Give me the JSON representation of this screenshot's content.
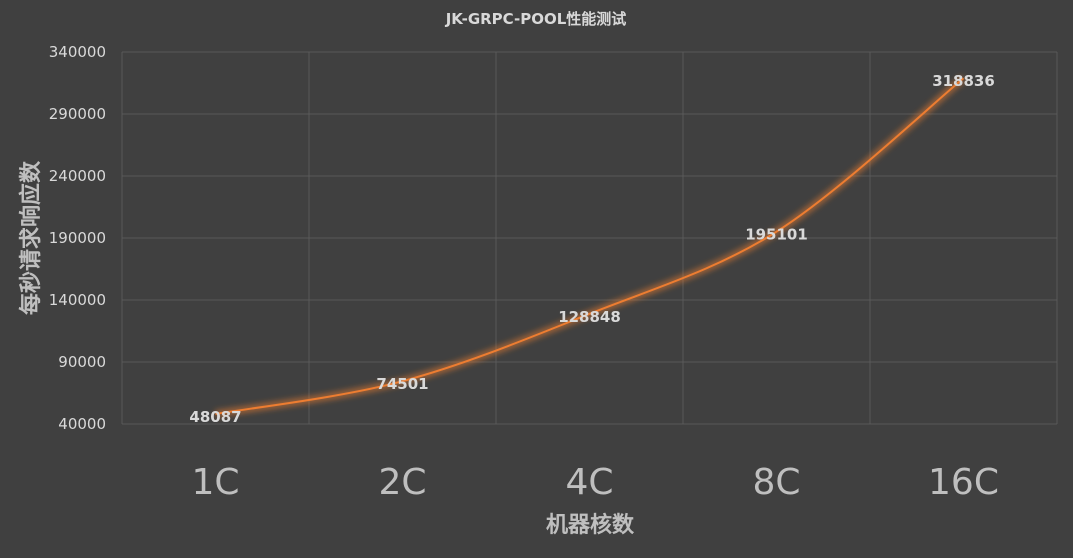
{
  "chart_data": {
    "type": "line",
    "title": "JK-GRPC-POOL性能测试",
    "xlabel": "机器核数",
    "ylabel": "每秒请求响应数",
    "categories": [
      "1C",
      "2C",
      "4C",
      "8C",
      "16C"
    ],
    "series": [
      {
        "values": [
          48087,
          74501,
          128848,
          195101,
          318836
        ],
        "color": "#ed7d31"
      }
    ],
    "ylim": [
      40000,
      340000
    ],
    "yticks": [
      40000,
      90000,
      140000,
      190000,
      240000,
      290000,
      340000
    ],
    "grid": true,
    "smooth": true,
    "data_labels": true,
    "background": "#404040"
  }
}
